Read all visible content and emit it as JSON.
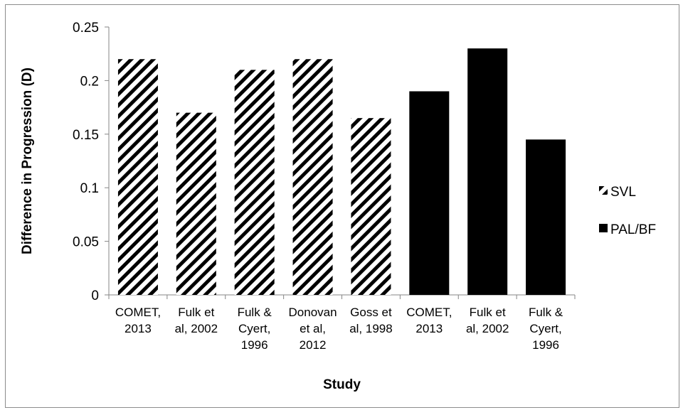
{
  "chart_data": {
    "type": "bar",
    "categories": [
      [
        "COMET,",
        "2013"
      ],
      [
        "Fulk et",
        "al, 2002"
      ],
      [
        "Fulk &",
        "Cyert,",
        "1996"
      ],
      [
        "Donovan",
        "et al,",
        "2012"
      ],
      [
        "Goss et",
        "al, 1998"
      ],
      [
        "COMET,",
        "2013"
      ],
      [
        "Fulk et",
        "al, 2002"
      ],
      [
        "Fulk &",
        "Cyert,",
        "1996"
      ]
    ],
    "values": [
      0.22,
      0.17,
      0.21,
      0.22,
      0.165,
      0.19,
      0.23,
      0.145
    ],
    "series_index": [
      0,
      0,
      0,
      0,
      0,
      1,
      1,
      1
    ],
    "series": [
      {
        "name": "SVL",
        "fill": "hatched",
        "color": "#000000"
      },
      {
        "name": "PAL/BF",
        "fill": "solid",
        "color": "#000000"
      }
    ],
    "xlabel": "Study",
    "ylabel": "Difference in Progression (D)",
    "ylim": [
      0,
      0.25
    ],
    "yticks": [
      "0",
      "0.05",
      "0.1",
      "0.15",
      "0.2",
      "0.25"
    ],
    "ytick_values": [
      0,
      0.05,
      0.1,
      0.15,
      0.2,
      0.25
    ],
    "grid": false,
    "legend_position": "right"
  }
}
